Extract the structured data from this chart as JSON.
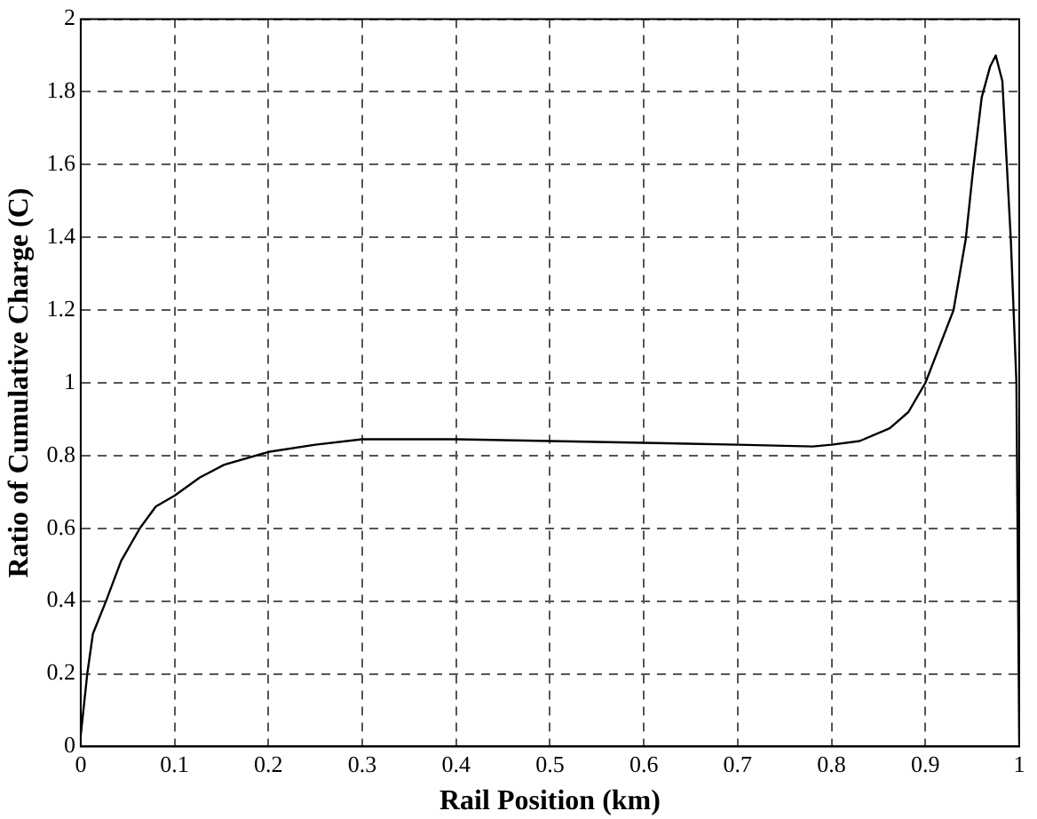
{
  "chart_data": {
    "type": "line",
    "xlabel": "Rail Position (km)",
    "ylabel": "Ratio of Cumulative Charge (C)",
    "xlim": [
      0,
      1
    ],
    "xticks": [
      0,
      0.1,
      0.2,
      0.3,
      0.4,
      0.5,
      0.6,
      0.7,
      0.8,
      0.9,
      1
    ],
    "ylim": [
      0,
      2
    ],
    "yticks": [
      0,
      0.2,
      0.4,
      0.6,
      0.8,
      1,
      1.2,
      1.4,
      1.6,
      1.8,
      2
    ],
    "grid": true,
    "line_style": "solid",
    "marker": "none",
    "series": [
      {
        "color": "#000000",
        "x": [
          0,
          0.007,
          0.013,
          0.027,
          0.043,
          0.063,
          0.08,
          0.1,
          0.127,
          0.153,
          0.2,
          0.25,
          0.3,
          0.4,
          0.5,
          0.6,
          0.7,
          0.78,
          0.8,
          0.83,
          0.862,
          0.882,
          0.9,
          0.915,
          0.93,
          0.943,
          0.951,
          0.96,
          0.969,
          0.975,
          0.982,
          0.991,
          0.997,
          1
        ],
        "values": [
          0.03,
          0.2,
          0.31,
          0.4,
          0.51,
          0.6,
          0.66,
          0.69,
          0.74,
          0.775,
          0.81,
          0.83,
          0.845,
          0.845,
          0.84,
          0.835,
          0.83,
          0.825,
          0.83,
          0.84,
          0.875,
          0.92,
          1.0,
          1.1,
          1.2,
          1.395,
          1.59,
          1.785,
          1.87,
          1.9,
          1.83,
          1.395,
          1.0,
          0.01
        ]
      }
    ]
  }
}
